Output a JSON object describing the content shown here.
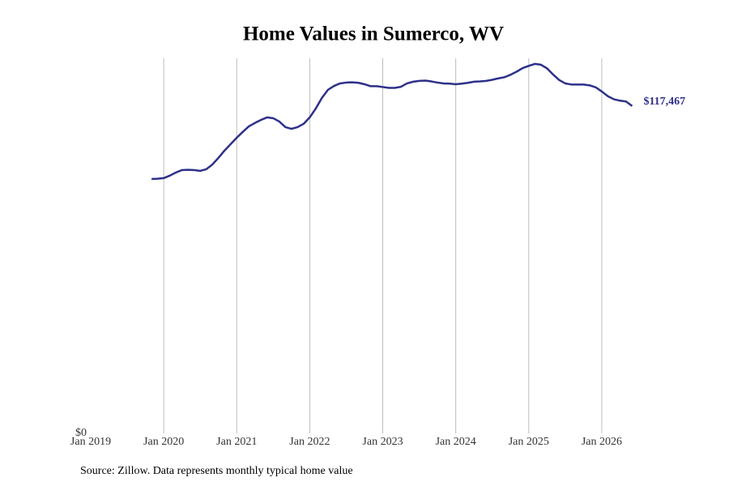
{
  "chart_data": {
    "type": "line",
    "title": "Home Values in Sumerco, WV",
    "source": "Source: Zillow. Data represents monthly typical home value",
    "x": [
      "2019-11",
      "2019-12",
      "2020-01",
      "2020-02",
      "2020-03",
      "2020-04",
      "2020-05",
      "2020-06",
      "2020-07",
      "2020-08",
      "2020-09",
      "2020-10",
      "2020-11",
      "2020-12",
      "2021-01",
      "2021-02",
      "2021-03",
      "2021-04",
      "2021-05",
      "2021-06",
      "2021-07",
      "2021-08",
      "2021-09",
      "2021-10",
      "2021-11",
      "2021-12",
      "2022-01",
      "2022-02",
      "2022-03",
      "2022-04",
      "2022-05",
      "2022-06",
      "2022-07",
      "2022-08",
      "2022-09",
      "2022-10",
      "2022-11",
      "2022-12",
      "2023-01",
      "2023-02",
      "2023-03",
      "2023-04",
      "2023-05",
      "2023-06",
      "2023-07",
      "2023-08",
      "2023-09",
      "2023-10",
      "2023-11",
      "2023-12",
      "2024-01",
      "2024-02",
      "2024-03",
      "2024-04",
      "2024-05",
      "2024-06",
      "2024-07",
      "2024-08",
      "2024-09",
      "2024-10",
      "2024-11",
      "2024-12",
      "2025-01",
      "2025-02",
      "2025-03",
      "2025-04",
      "2025-05",
      "2025-06",
      "2025-07",
      "2025-08",
      "2025-09",
      "2025-10",
      "2025-11",
      "2025-12",
      "2026-01",
      "2026-02",
      "2026-03",
      "2026-04",
      "2026-05",
      "2026-06"
    ],
    "series": [
      {
        "name": "Sumerco, WV",
        "color": "#2e3089",
        "values": [
          91300,
          91400,
          91600,
          92500,
          93600,
          94500,
          94600,
          94500,
          94200,
          94800,
          96500,
          98900,
          101500,
          103800,
          106100,
          108200,
          110200,
          111400,
          112500,
          113400,
          113100,
          111900,
          109900,
          109300,
          109900,
          111100,
          113400,
          116600,
          120400,
          123300,
          124700,
          125600,
          125900,
          126000,
          125800,
          125300,
          124600,
          124600,
          124300,
          124000,
          124000,
          124400,
          125600,
          126200,
          126500,
          126600,
          126300,
          125900,
          125600,
          125500,
          125300,
          125500,
          125800,
          126200,
          126300,
          126500,
          126900,
          127400,
          127800,
          128700,
          129800,
          131100,
          131900,
          132600,
          132300,
          131000,
          128800,
          126800,
          125600,
          125200,
          125200,
          125200,
          124900,
          124200,
          122700,
          121000,
          119900,
          119400,
          119100,
          117467
        ],
        "value_labels": [
          null,
          null,
          null,
          null,
          null,
          null,
          null,
          null,
          null,
          null,
          null,
          null,
          null,
          null,
          null,
          null,
          null,
          null,
          null,
          null,
          null,
          null,
          null,
          null,
          null,
          null,
          null,
          null,
          null,
          null,
          null,
          null,
          null,
          null,
          null,
          null,
          null,
          null,
          null,
          null,
          null,
          null,
          null,
          null,
          null,
          null,
          null,
          null,
          null,
          null,
          null,
          null,
          null,
          null,
          null,
          null,
          null,
          null,
          null,
          null,
          null,
          null,
          null,
          null,
          null,
          null,
          null,
          null,
          null,
          null,
          null,
          null,
          null,
          null,
          null,
          null,
          null,
          null,
          null,
          "$117,467"
        ]
      }
    ],
    "xlim": [
      "2019-01",
      "2026-09"
    ],
    "xticks": [
      {
        "value": "2019-01",
        "label": "Jan 2019"
      },
      {
        "value": "2020-01",
        "label": "Jan 2020"
      },
      {
        "value": "2021-01",
        "label": "Jan 2021"
      },
      {
        "value": "2022-01",
        "label": "Jan 2022"
      },
      {
        "value": "2023-01",
        "label": "Jan 2023"
      },
      {
        "value": "2024-01",
        "label": "Jan 2024"
      },
      {
        "value": "2025-01",
        "label": "Jan 2025"
      },
      {
        "value": "2026-01",
        "label": "Jan 2026"
      }
    ],
    "ylim": [
      0,
      134600
    ],
    "yticks": [
      {
        "value": 0,
        "label": "$0"
      }
    ],
    "grid": "x"
  }
}
